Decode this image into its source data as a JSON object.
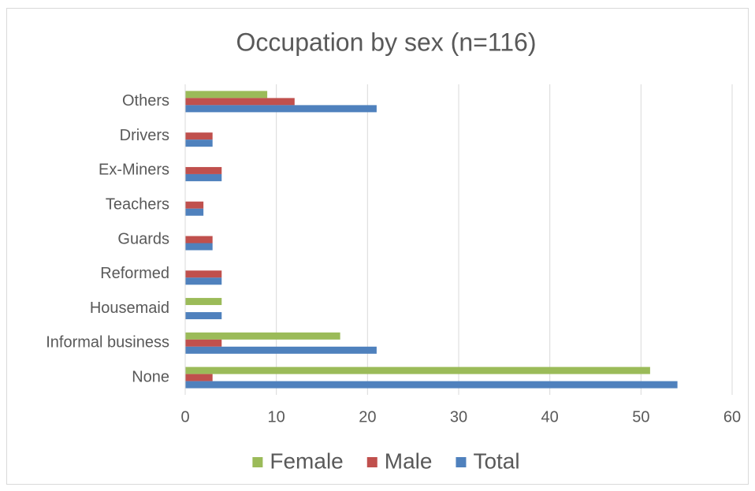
{
  "chart_data": {
    "type": "hbar",
    "title": "Occupation by sex (n=116)",
    "categories": [
      "None",
      "Informal business",
      "Housemaid",
      "Reformed",
      "Guards",
      "Teachers",
      "Ex-Miners",
      "Drivers",
      "Others"
    ],
    "series": [
      {
        "name": "Female",
        "color": "#9bbb59",
        "values": [
          51,
          17,
          4,
          0,
          0,
          0,
          0,
          0,
          9
        ]
      },
      {
        "name": "Male",
        "color": "#c0504d",
        "values": [
          3,
          4,
          0,
          4,
          3,
          2,
          4,
          3,
          12
        ]
      },
      {
        "name": "Total",
        "color": "#4f81bd",
        "values": [
          54,
          21,
          4,
          4,
          3,
          2,
          4,
          3,
          21
        ]
      }
    ],
    "xlim": [
      0,
      60
    ],
    "xticks": [
      0,
      10,
      20,
      30,
      40,
      50,
      60
    ],
    "grid": true,
    "legend": "bottom"
  }
}
